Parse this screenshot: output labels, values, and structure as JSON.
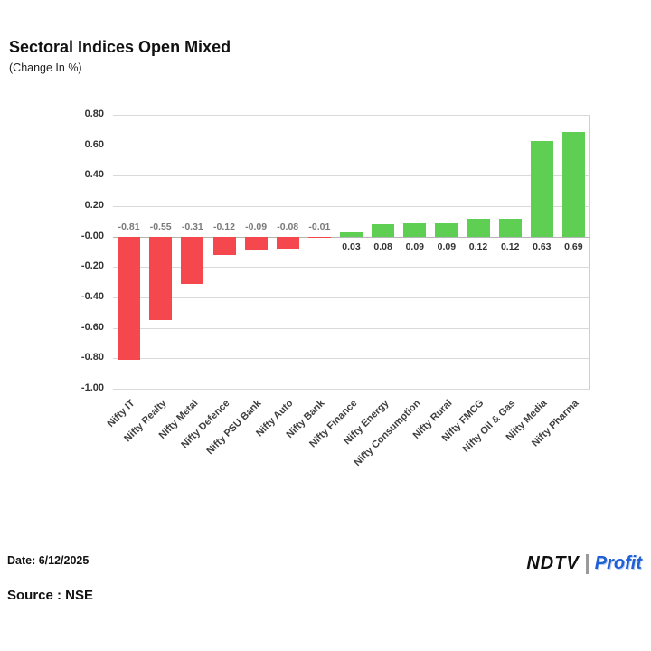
{
  "header": {
    "title": "Sectoral Indices Open Mixed",
    "subtitle": "(Change In %)"
  },
  "chart_data": {
    "type": "bar",
    "title": "Sectoral Indices Open Mixed",
    "subtitle": "(Change In %)",
    "unit": "Change In %",
    "categories": [
      "Nifty IT",
      "Nifty Realty",
      "Nifty Metal",
      "Nifty Defence",
      "Nifty PSU Bank",
      "Nifty Auto",
      "Nifty Bank",
      "Nifty Finance",
      "Nifty Energy",
      "Nifty Consumption",
      "Nifty Rural",
      "Nifty FMCG",
      "Nifty Oil & Gas",
      "Nifty Media",
      "Nifty Pharma"
    ],
    "values": [
      -0.81,
      -0.55,
      -0.31,
      -0.12,
      -0.09,
      -0.08,
      -0.01,
      0.03,
      0.08,
      0.09,
      0.09,
      0.12,
      0.12,
      0.63,
      0.69
    ],
    "ylim": [
      -1.0,
      0.8
    ],
    "yticks": [
      0.8,
      0.6,
      0.4,
      0.2,
      0,
      -0.2,
      -0.4,
      -0.6,
      -0.8,
      -1.0
    ],
    "ytick_labels": [
      "0.80",
      "0.60",
      "0.40",
      "0.20",
      "-0.00",
      "-0.20",
      "-0.40",
      "-0.60",
      "-0.80",
      "-1.00"
    ],
    "grid": true,
    "legend": "none",
    "colors": {
      "positive": "#5ecf52",
      "negative": "#f4484e"
    }
  },
  "footer": {
    "date_label": "Date: 6/12/2025",
    "source_label": "Source : NSE",
    "logo": {
      "ndtv": "NDTV",
      "separator_icon": "vertical-bar",
      "profit": "Profit"
    }
  }
}
